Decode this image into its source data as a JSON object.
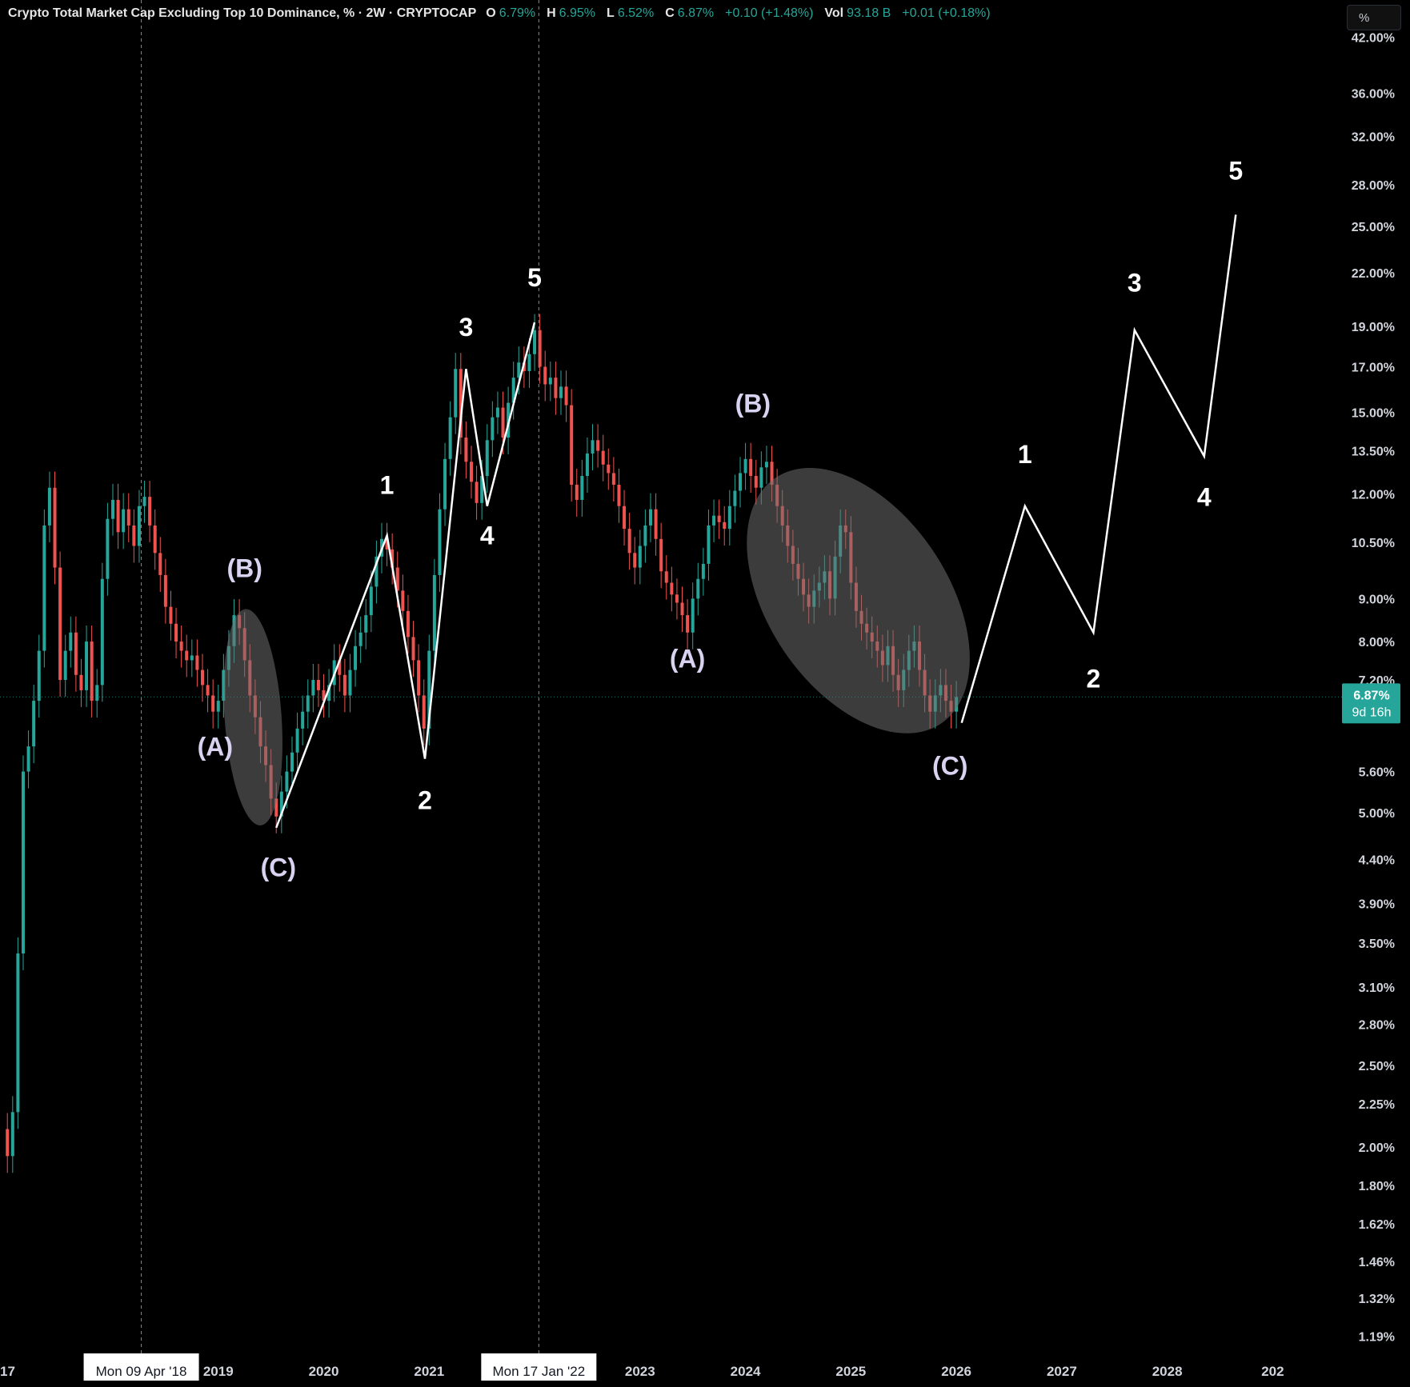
{
  "header": {
    "title": "Crypto Total Market Cap Excluding Top 10 Dominance, % · 2W · CRYPTOCAP",
    "open_label": "O",
    "open": "6.79%",
    "high_label": "H",
    "high": "6.95%",
    "low_label": "L",
    "low": "6.52%",
    "close_label": "C",
    "close": "6.87%",
    "change": "+0.10 (+1.48%)",
    "vol_label": "Vol",
    "vol": "93.18 B",
    "vol_change": "+0.01 (+0.18%)"
  },
  "scale_button": "%",
  "colors": {
    "background": "#000000",
    "up": "#26a69a",
    "down": "#ef5350",
    "wave_line": "#ffffff",
    "label_white": "#ffffff",
    "label_lavender": "#d9d2f0",
    "price_tag": "#26a69a",
    "highlight_ellipse": "#6e6e6e"
  },
  "chart_data": {
    "type": "line",
    "title": "Crypto Total Market Cap Excluding Top 10 Dominance, %",
    "interval": "2W",
    "y_scale": "log",
    "ylim": [
      1.12,
      46.5
    ],
    "y_ticks": [
      "42.00%",
      "36.00%",
      "32.00%",
      "28.00%",
      "25.00%",
      "22.00%",
      "19.00%",
      "17.00%",
      "15.00%",
      "13.50%",
      "12.00%",
      "10.50%",
      "9.00%",
      "8.00%",
      "7.20%",
      "5.60%",
      "5.00%",
      "4.40%",
      "3.90%",
      "3.50%",
      "3.10%",
      "2.80%",
      "2.50%",
      "2.25%",
      "2.00%",
      "1.80%",
      "1.62%",
      "1.46%",
      "1.32%",
      "1.19%"
    ],
    "y_tick_values": [
      42.0,
      36.0,
      32.0,
      28.0,
      25.0,
      22.0,
      19.0,
      17.0,
      15.0,
      13.5,
      12.0,
      10.5,
      9.0,
      8.0,
      7.2,
      5.6,
      5.0,
      4.4,
      3.9,
      3.5,
      3.1,
      2.8,
      2.5,
      2.25,
      2.0,
      1.8,
      1.62,
      1.46,
      1.32,
      1.19
    ],
    "x_ticks": [
      "17",
      "2019",
      "2020",
      "2021",
      "2023",
      "2024",
      "2025",
      "2026",
      "2027",
      "2028",
      "202"
    ],
    "x_tick_values": [
      2017.0,
      2019.0,
      2020.0,
      2021.0,
      2023.0,
      2024.0,
      2025.0,
      2026.0,
      2027.0,
      2028.0,
      2029.0
    ],
    "xlim": [
      2016.93,
      2029.68
    ],
    "crosshair_dates": [
      {
        "label": "Mon 09 Apr '18",
        "x": 2018.27
      },
      {
        "label": "Mon 17 Jan '22",
        "x": 2022.04
      }
    ],
    "last_price": {
      "value": 6.87,
      "label": "6.87%",
      "countdown": "9d 16h"
    },
    "price_series": [
      {
        "x": 2016.94,
        "y": 2.1
      },
      {
        "x": 2017.0,
        "y": 1.95
      },
      {
        "x": 2017.05,
        "y": 2.2
      },
      {
        "x": 2017.1,
        "y": 3.4
      },
      {
        "x": 2017.15,
        "y": 5.6
      },
      {
        "x": 2017.2,
        "y": 6.0
      },
      {
        "x": 2017.25,
        "y": 6.8
      },
      {
        "x": 2017.3,
        "y": 7.8
      },
      {
        "x": 2017.35,
        "y": 11.0
      },
      {
        "x": 2017.4,
        "y": 12.2
      },
      {
        "x": 2017.45,
        "y": 9.8
      },
      {
        "x": 2017.5,
        "y": 7.2
      },
      {
        "x": 2017.55,
        "y": 7.8
      },
      {
        "x": 2017.6,
        "y": 8.2
      },
      {
        "x": 2017.65,
        "y": 7.3
      },
      {
        "x": 2017.7,
        "y": 7.0
      },
      {
        "x": 2017.75,
        "y": 8.0
      },
      {
        "x": 2017.8,
        "y": 6.8
      },
      {
        "x": 2017.85,
        "y": 7.1
      },
      {
        "x": 2017.9,
        "y": 9.5
      },
      {
        "x": 2017.95,
        "y": 11.2
      },
      {
        "x": 2018.0,
        "y": 11.8
      },
      {
        "x": 2018.05,
        "y": 10.8
      },
      {
        "x": 2018.1,
        "y": 11.5
      },
      {
        "x": 2018.15,
        "y": 11.0
      },
      {
        "x": 2018.2,
        "y": 10.4
      },
      {
        "x": 2018.25,
        "y": 11.6
      },
      {
        "x": 2018.3,
        "y": 11.9
      },
      {
        "x": 2018.35,
        "y": 11.0
      },
      {
        "x": 2018.4,
        "y": 10.2
      },
      {
        "x": 2018.45,
        "y": 9.6
      },
      {
        "x": 2018.5,
        "y": 8.8
      },
      {
        "x": 2018.55,
        "y": 8.4
      },
      {
        "x": 2018.6,
        "y": 8.0
      },
      {
        "x": 2018.65,
        "y": 7.8
      },
      {
        "x": 2018.7,
        "y": 7.6
      },
      {
        "x": 2018.75,
        "y": 7.7
      },
      {
        "x": 2018.8,
        "y": 7.4
      },
      {
        "x": 2018.85,
        "y": 7.1
      },
      {
        "x": 2018.9,
        "y": 6.9
      },
      {
        "x": 2018.95,
        "y": 6.6
      },
      {
        "x": 2019.0,
        "y": 6.8
      },
      {
        "x": 2019.05,
        "y": 7.4
      },
      {
        "x": 2019.1,
        "y": 7.9
      },
      {
        "x": 2019.15,
        "y": 8.6
      },
      {
        "x": 2019.2,
        "y": 8.3
      },
      {
        "x": 2019.25,
        "y": 7.6
      },
      {
        "x": 2019.3,
        "y": 6.9
      },
      {
        "x": 2019.35,
        "y": 6.5
      },
      {
        "x": 2019.4,
        "y": 6.0
      },
      {
        "x": 2019.45,
        "y": 5.7
      },
      {
        "x": 2019.5,
        "y": 5.2
      },
      {
        "x": 2019.55,
        "y": 4.95
      },
      {
        "x": 2019.6,
        "y": 5.3
      },
      {
        "x": 2019.65,
        "y": 5.6
      },
      {
        "x": 2019.7,
        "y": 5.9
      },
      {
        "x": 2019.75,
        "y": 6.3
      },
      {
        "x": 2019.8,
        "y": 6.6
      },
      {
        "x": 2019.85,
        "y": 6.9
      },
      {
        "x": 2019.9,
        "y": 7.2
      },
      {
        "x": 2019.95,
        "y": 7.0
      },
      {
        "x": 2020.0,
        "y": 6.8
      },
      {
        "x": 2020.05,
        "y": 7.1
      },
      {
        "x": 2020.1,
        "y": 7.6
      },
      {
        "x": 2020.15,
        "y": 7.3
      },
      {
        "x": 2020.2,
        "y": 6.9
      },
      {
        "x": 2020.25,
        "y": 7.4
      },
      {
        "x": 2020.3,
        "y": 7.9
      },
      {
        "x": 2020.35,
        "y": 8.2
      },
      {
        "x": 2020.4,
        "y": 8.6
      },
      {
        "x": 2020.45,
        "y": 9.3
      },
      {
        "x": 2020.5,
        "y": 10.1
      },
      {
        "x": 2020.55,
        "y": 10.6
      },
      {
        "x": 2020.6,
        "y": 10.3
      },
      {
        "x": 2020.65,
        "y": 9.8
      },
      {
        "x": 2020.7,
        "y": 9.2
      },
      {
        "x": 2020.75,
        "y": 8.7
      },
      {
        "x": 2020.8,
        "y": 8.1
      },
      {
        "x": 2020.85,
        "y": 7.6
      },
      {
        "x": 2020.9,
        "y": 6.9
      },
      {
        "x": 2020.95,
        "y": 6.3
      },
      {
        "x": 2021.0,
        "y": 7.8
      },
      {
        "x": 2021.05,
        "y": 9.6
      },
      {
        "x": 2021.1,
        "y": 11.5
      },
      {
        "x": 2021.15,
        "y": 13.2
      },
      {
        "x": 2021.2,
        "y": 14.8
      },
      {
        "x": 2021.25,
        "y": 16.9
      },
      {
        "x": 2021.3,
        "y": 14.0
      },
      {
        "x": 2021.35,
        "y": 13.1
      },
      {
        "x": 2021.4,
        "y": 12.4
      },
      {
        "x": 2021.45,
        "y": 11.7
      },
      {
        "x": 2021.5,
        "y": 12.6
      },
      {
        "x": 2021.55,
        "y": 13.9
      },
      {
        "x": 2021.6,
        "y": 14.8
      },
      {
        "x": 2021.65,
        "y": 15.2
      },
      {
        "x": 2021.7,
        "y": 14.0
      },
      {
        "x": 2021.75,
        "y": 15.4
      },
      {
        "x": 2021.8,
        "y": 16.5
      },
      {
        "x": 2021.85,
        "y": 17.2
      },
      {
        "x": 2021.9,
        "y": 16.8
      },
      {
        "x": 2021.95,
        "y": 17.6
      },
      {
        "x": 2022.0,
        "y": 18.8
      },
      {
        "x": 2022.05,
        "y": 17.0
      },
      {
        "x": 2022.1,
        "y": 16.2
      },
      {
        "x": 2022.15,
        "y": 16.5
      },
      {
        "x": 2022.2,
        "y": 15.6
      },
      {
        "x": 2022.25,
        "y": 16.1
      },
      {
        "x": 2022.3,
        "y": 15.3
      },
      {
        "x": 2022.35,
        "y": 12.3
      },
      {
        "x": 2022.4,
        "y": 11.8
      },
      {
        "x": 2022.45,
        "y": 12.6
      },
      {
        "x": 2022.5,
        "y": 13.4
      },
      {
        "x": 2022.55,
        "y": 13.9
      },
      {
        "x": 2022.6,
        "y": 13.5
      },
      {
        "x": 2022.65,
        "y": 13.0
      },
      {
        "x": 2022.7,
        "y": 12.7
      },
      {
        "x": 2022.75,
        "y": 12.3
      },
      {
        "x": 2022.8,
        "y": 11.6
      },
      {
        "x": 2022.85,
        "y": 10.9
      },
      {
        "x": 2022.9,
        "y": 10.2
      },
      {
        "x": 2022.95,
        "y": 9.8
      },
      {
        "x": 2023.0,
        "y": 10.4
      },
      {
        "x": 2023.05,
        "y": 11.0
      },
      {
        "x": 2023.1,
        "y": 11.5
      },
      {
        "x": 2023.15,
        "y": 10.6
      },
      {
        "x": 2023.2,
        "y": 9.7
      },
      {
        "x": 2023.25,
        "y": 9.4
      },
      {
        "x": 2023.3,
        "y": 9.1
      },
      {
        "x": 2023.35,
        "y": 8.9
      },
      {
        "x": 2023.4,
        "y": 8.6
      },
      {
        "x": 2023.45,
        "y": 8.2
      },
      {
        "x": 2023.5,
        "y": 9.0
      },
      {
        "x": 2023.55,
        "y": 9.5
      },
      {
        "x": 2023.6,
        "y": 9.9
      },
      {
        "x": 2023.65,
        "y": 11.0
      },
      {
        "x": 2023.7,
        "y": 11.3
      },
      {
        "x": 2023.75,
        "y": 11.1
      },
      {
        "x": 2023.8,
        "y": 10.9
      },
      {
        "x": 2023.85,
        "y": 11.6
      },
      {
        "x": 2023.9,
        "y": 12.1
      },
      {
        "x": 2023.95,
        "y": 12.7
      },
      {
        "x": 2024.0,
        "y": 13.2
      },
      {
        "x": 2024.05,
        "y": 12.6
      },
      {
        "x": 2024.1,
        "y": 12.2
      },
      {
        "x": 2024.15,
        "y": 12.9
      },
      {
        "x": 2024.2,
        "y": 13.1
      },
      {
        "x": 2024.25,
        "y": 12.3
      },
      {
        "x": 2024.3,
        "y": 11.6
      },
      {
        "x": 2024.35,
        "y": 11.0
      },
      {
        "x": 2024.4,
        "y": 10.4
      },
      {
        "x": 2024.45,
        "y": 9.9
      },
      {
        "x": 2024.5,
        "y": 9.5
      },
      {
        "x": 2024.55,
        "y": 9.1
      },
      {
        "x": 2024.6,
        "y": 8.8
      },
      {
        "x": 2024.65,
        "y": 9.2
      },
      {
        "x": 2024.7,
        "y": 9.4
      },
      {
        "x": 2024.75,
        "y": 9.7
      },
      {
        "x": 2024.8,
        "y": 9.0
      },
      {
        "x": 2024.85,
        "y": 10.1
      },
      {
        "x": 2024.9,
        "y": 11.0
      },
      {
        "x": 2024.95,
        "y": 10.8
      },
      {
        "x": 2025.0,
        "y": 9.4
      },
      {
        "x": 2025.05,
        "y": 8.7
      },
      {
        "x": 2025.1,
        "y": 8.4
      },
      {
        "x": 2025.15,
        "y": 8.2
      },
      {
        "x": 2025.2,
        "y": 8.0
      },
      {
        "x": 2025.25,
        "y": 7.8
      },
      {
        "x": 2025.3,
        "y": 7.5
      },
      {
        "x": 2025.35,
        "y": 7.9
      },
      {
        "x": 2025.4,
        "y": 7.3
      },
      {
        "x": 2025.45,
        "y": 7.0
      },
      {
        "x": 2025.5,
        "y": 7.4
      },
      {
        "x": 2025.55,
        "y": 7.8
      },
      {
        "x": 2025.6,
        "y": 8.0
      },
      {
        "x": 2025.65,
        "y": 7.4
      },
      {
        "x": 2025.7,
        "y": 6.9
      },
      {
        "x": 2025.75,
        "y": 6.6
      },
      {
        "x": 2025.8,
        "y": 6.9
      },
      {
        "x": 2025.85,
        "y": 7.1
      },
      {
        "x": 2025.9,
        "y": 6.8
      },
      {
        "x": 2025.95,
        "y": 6.6
      },
      {
        "x": 2026.0,
        "y": 6.87
      }
    ],
    "annotations": {
      "wave_paths": [
        {
          "name": "impulse-2019-2022",
          "points": [
            {
              "x": 2019.55,
              "y": 4.8
            },
            {
              "x": 2020.6,
              "y": 10.7
            },
            {
              "x": 2020.96,
              "y": 5.8
            },
            {
              "x": 2021.35,
              "y": 16.9
            },
            {
              "x": 2021.55,
              "y": 11.6
            },
            {
              "x": 2022.0,
              "y": 19.2
            }
          ]
        },
        {
          "name": "projected-impulse",
          "points": [
            {
              "x": 2026.05,
              "y": 6.4
            },
            {
              "x": 2026.65,
              "y": 11.6
            },
            {
              "x": 2027.3,
              "y": 8.2
            },
            {
              "x": 2027.69,
              "y": 18.8
            },
            {
              "x": 2028.35,
              "y": 13.3
            },
            {
              "x": 2028.65,
              "y": 25.8
            }
          ]
        }
      ],
      "highlight_ellipses": [
        {
          "name": "correction-2019",
          "cx": 2019.33,
          "cy": 6.5,
          "rx": 0.27,
          "ry_top": 8.7,
          "ry_bottom": 4.8,
          "angle": -4
        },
        {
          "name": "correction-2024-2025",
          "cx": 2025.07,
          "cy": 8.95,
          "rx": 1.55,
          "ry_top": 13.3,
          "ry_bottom": 5.9,
          "angle": 56
        }
      ],
      "wave_labels": [
        {
          "text": "(A)",
          "x": 2018.97,
          "y": 5.85,
          "style": "lavender"
        },
        {
          "text": "(B)",
          "x": 2019.25,
          "y": 9.55,
          "style": "lavender"
        },
        {
          "text": "(C)",
          "x": 2019.57,
          "y": 4.2,
          "style": "lavender"
        },
        {
          "text": "1",
          "x": 2020.6,
          "y": 12.0,
          "style": "white"
        },
        {
          "text": "2",
          "x": 2020.96,
          "y": 5.05,
          "style": "white"
        },
        {
          "text": "3",
          "x": 2021.35,
          "y": 18.5,
          "style": "white"
        },
        {
          "text": "4",
          "x": 2021.55,
          "y": 10.45,
          "style": "white"
        },
        {
          "text": "5",
          "x": 2022.0,
          "y": 21.2,
          "style": "white"
        },
        {
          "text": "(A)",
          "x": 2023.45,
          "y": 7.45,
          "style": "lavender"
        },
        {
          "text": "(B)",
          "x": 2024.07,
          "y": 15.0,
          "style": "lavender"
        },
        {
          "text": "(C)",
          "x": 2025.94,
          "y": 5.55,
          "style": "lavender"
        },
        {
          "text": "1",
          "x": 2026.65,
          "y": 13.05,
          "style": "white"
        },
        {
          "text": "2",
          "x": 2027.3,
          "y": 7.05,
          "style": "white"
        },
        {
          "text": "3",
          "x": 2027.69,
          "y": 20.9,
          "style": "white"
        },
        {
          "text": "4",
          "x": 2028.35,
          "y": 11.6,
          "style": "white"
        },
        {
          "text": "5",
          "x": 2028.65,
          "y": 28.4,
          "style": "white"
        }
      ]
    }
  }
}
